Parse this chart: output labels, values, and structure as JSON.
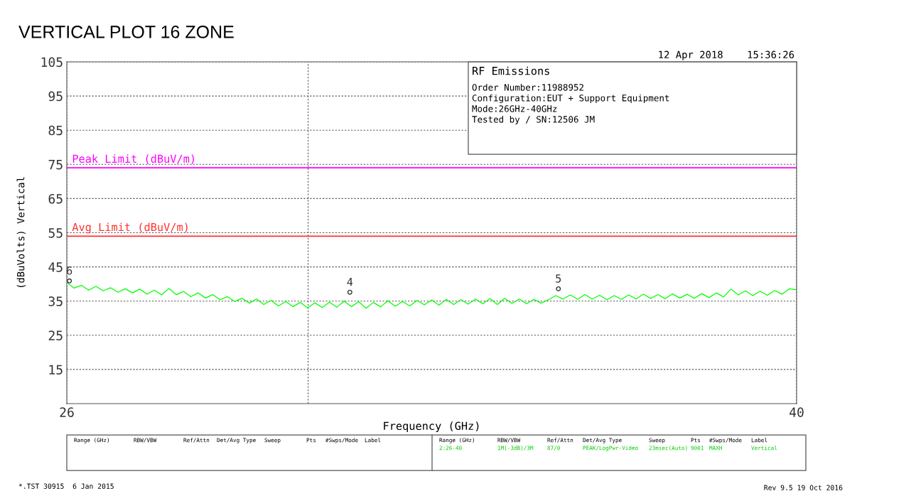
{
  "chart_data": {
    "type": "line",
    "title": "VERTICAL PLOT 16 ZONE",
    "xlabel": "Frequency (GHz)",
    "ylabel": "(dBuVolts) Vertical",
    "x": [
      26.0,
      26.14,
      26.28,
      26.42,
      26.56,
      26.7,
      26.84,
      26.98,
      27.12,
      27.26,
      27.4,
      27.54,
      27.68,
      27.82,
      27.96,
      28.1,
      28.24,
      28.38,
      28.52,
      28.66,
      28.8,
      28.94,
      29.08,
      29.22,
      29.36,
      29.5,
      29.64,
      29.78,
      29.92,
      30.06,
      30.2,
      30.34,
      30.48,
      30.62,
      30.76,
      30.9,
      31.04,
      31.18,
      31.32,
      31.46,
      31.6,
      31.74,
      31.88,
      32.02,
      32.16,
      32.3,
      32.44,
      32.58,
      32.72,
      32.86,
      33.0,
      33.14,
      33.28,
      33.42,
      33.56,
      33.7,
      33.84,
      33.98,
      34.12,
      34.26,
      34.4,
      34.54,
      34.68,
      34.82,
      34.96,
      35.1,
      35.24,
      35.38,
      35.52,
      35.66,
      35.8,
      35.94,
      36.08,
      36.22,
      36.36,
      36.5,
      36.64,
      36.78,
      36.92,
      37.06,
      37.2,
      37.34,
      37.48,
      37.62,
      37.76,
      37.9,
      38.04,
      38.18,
      38.32,
      38.46,
      38.6,
      38.74,
      38.88,
      39.02,
      39.16,
      39.3,
      39.44,
      39.58,
      39.72,
      39.86,
      40.0
    ],
    "series": [
      {
        "color": "#00ff00",
        "values": [
          40.5,
          38.8,
          39.6,
          38.2,
          39.3,
          38.0,
          38.9,
          37.6,
          38.6,
          37.4,
          38.5,
          37.0,
          38.2,
          36.8,
          38.7,
          36.9,
          37.8,
          36.3,
          37.4,
          35.9,
          36.9,
          35.4,
          36.3,
          34.9,
          35.8,
          34.4,
          35.6,
          34.0,
          35.2,
          33.6,
          34.9,
          33.4,
          34.6,
          33.0,
          34.5,
          33.1,
          34.7,
          33.2,
          35.0,
          33.4,
          34.8,
          32.9,
          34.6,
          33.3,
          35.1,
          33.5,
          34.9,
          33.6,
          35.2,
          33.9,
          35.3,
          33.8,
          35.5,
          34.0,
          35.4,
          34.1,
          35.6,
          34.2,
          35.7,
          34.0,
          35.8,
          34.3,
          35.6,
          34.2,
          35.5,
          34.4,
          35.4,
          36.6,
          35.6,
          36.8,
          35.5,
          36.9,
          35.6,
          36.7,
          35.4,
          36.6,
          35.5,
          36.8,
          35.6,
          37.0,
          35.8,
          36.9,
          35.7,
          37.1,
          35.9,
          37.0,
          35.8,
          37.2,
          36.0,
          37.4,
          36.2,
          38.5,
          36.8,
          38.0,
          36.6,
          37.9,
          36.7,
          38.1,
          37.0,
          38.6,
          38.3
        ]
      }
    ],
    "xlim": [
      26,
      40
    ],
    "xticks": [
      26,
      {
        "value": 30.63,
        "label": null
      },
      40
    ],
    "ylim": [
      5,
      105
    ],
    "yticks": [
      15,
      25,
      35,
      45,
      55,
      65,
      75,
      85,
      95,
      105
    ],
    "grid": true,
    "marker": "none",
    "line_style": "solid",
    "legend": false,
    "ref_lines": [
      {
        "axis": "y",
        "value": 74,
        "label": "Peak Limit (dBuV/m)",
        "color": "#ff00ff"
      },
      {
        "axis": "y",
        "value": 54,
        "label": "Avg Limit (dBuV/m)",
        "color": "#ff3030"
      }
    ],
    "annotations": [
      "12 Apr 2018    15:36:26",
      "RF Emissions",
      "Order Number:11988952",
      "Configuration:EUT + Support Equipment",
      "Mode:26GHz-40GHz",
      "Tested by / SN:12506 JM",
      {
        "text": "6",
        "x": 26.05,
        "y": 40.9
      },
      {
        "text": "4",
        "x": 31.43,
        "y": 37.6
      },
      {
        "text": "5",
        "x": 35.43,
        "y": 38.6
      },
      "Range (GHz)",
      "RBW/VBW",
      "Ref/Attn",
      "Det/Avg Type",
      "Sweep",
      "Pts",
      "#Swps/Mode",
      "Label",
      "Range (GHz)",
      "RBW/VBW",
      "Ref/Attn",
      "Det/Avg Type",
      "Sweep",
      "Pts",
      "#Swps/Mode",
      "Label",
      "2:26-40",
      "1M(-3dB)/3M",
      "87/0",
      "PEAK/LogPwr-Video",
      "23msec(Auto)",
      "9001",
      "MAXH",
      "Vertical",
      "*.TST 30915  6 Jan 2015",
      "Rev 9.5 19 Oct 2016"
    ]
  }
}
